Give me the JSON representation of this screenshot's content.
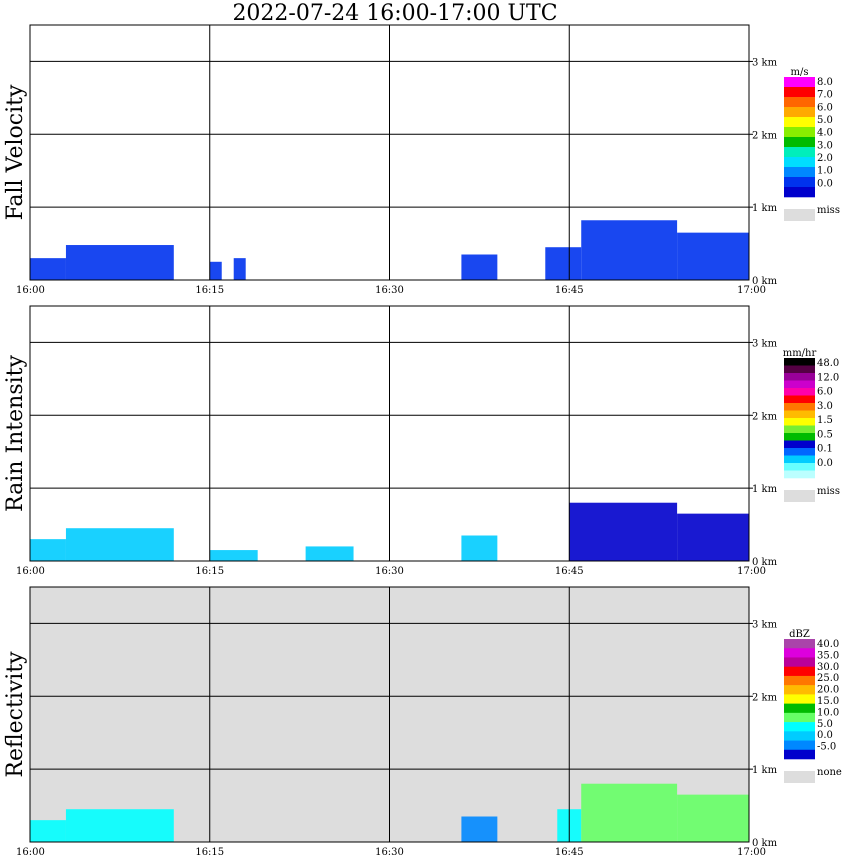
{
  "title": "2022-07-24   16:00-17:00 UTC",
  "chart_data": [
    {
      "type": "heatmap",
      "ylabel": "Fall Velocity",
      "x_ticks": [
        "16:00",
        "16:15",
        "16:30",
        "16:45",
        "17:00"
      ],
      "y_ticks": [
        "1 km",
        "2 km",
        "3 km"
      ],
      "y_range_km": [
        0,
        3.5
      ],
      "legend_units": "m/s",
      "legend_labels": [
        "8.0",
        "7.0",
        "6.0",
        "5.0",
        "4.0",
        "3.0",
        "2.0",
        "1.0",
        "0.0"
      ],
      "legend_colors": [
        "#ff00ff",
        "#ff0000",
        "#ff6600",
        "#ffaa00",
        "#ffff00",
        "#88ee00",
        "#00bb00",
        "#00eebb",
        "#00ddff",
        "#0088ff",
        "#0033ee",
        "#0000cc"
      ],
      "missing_label": "miss",
      "missing_color": "#dddddd",
      "background": "#ffffff",
      "echo_regions": [
        {
          "start": "16:00",
          "end": "16:03",
          "top_km": 0.3,
          "value": 1.0
        },
        {
          "start": "16:03",
          "end": "16:12",
          "top_km": 0.48,
          "value": 1.0
        },
        {
          "start": "16:15",
          "end": "16:16",
          "top_km": 0.25,
          "value": 1.0
        },
        {
          "start": "16:17",
          "end": "16:18",
          "top_km": 0.3,
          "value": 1.0
        },
        {
          "start": "16:36",
          "end": "16:39",
          "top_km": 0.35,
          "value": 1.0
        },
        {
          "start": "16:43",
          "end": "16:46",
          "top_km": 0.45,
          "value": 1.0
        },
        {
          "start": "16:46",
          "end": "16:54",
          "top_km": 0.82,
          "value": 1.0
        },
        {
          "start": "16:54",
          "end": "17:00",
          "top_km": 0.65,
          "value": 1.0
        }
      ]
    },
    {
      "type": "heatmap",
      "ylabel": "Rain Intensity",
      "x_ticks": [
        "16:00",
        "16:15",
        "16:30",
        "16:45",
        "17:00"
      ],
      "y_ticks": [
        "1 km",
        "2 km",
        "3 km"
      ],
      "y_range_km": [
        0,
        3.5
      ],
      "legend_units": "mm/hr",
      "legend_labels": [
        "48.0",
        "12.0",
        "6.0",
        "3.0",
        "1.5",
        "0.5",
        "0.1",
        "0.0"
      ],
      "legend_colors": [
        "#000000",
        "#550044",
        "#990099",
        "#cc00cc",
        "#ff00aa",
        "#ff0000",
        "#ff7700",
        "#ffbb00",
        "#ffff00",
        "#77ee33",
        "#00bb00",
        "#0000cc",
        "#0066ff",
        "#00ccff",
        "#66ffff",
        "#bbffff"
      ],
      "missing_label": "miss",
      "missing_color": "#dddddd",
      "background": "#ffffff",
      "echo_regions": [
        {
          "start": "16:00",
          "end": "16:03",
          "top_km": 0.3,
          "value": 0.1
        },
        {
          "start": "16:03",
          "end": "16:12",
          "top_km": 0.45,
          "value": 0.1
        },
        {
          "start": "16:15",
          "end": "16:19",
          "top_km": 0.15,
          "value": 0.1
        },
        {
          "start": "16:23",
          "end": "16:27",
          "top_km": 0.2,
          "value": 0.1
        },
        {
          "start": "16:36",
          "end": "16:39",
          "top_km": 0.35,
          "value": 0.1
        },
        {
          "start": "16:45",
          "end": "16:54",
          "top_km": 0.8,
          "value": 0.5
        },
        {
          "start": "16:54",
          "end": "17:00",
          "top_km": 0.65,
          "value": 0.5
        }
      ]
    },
    {
      "type": "heatmap",
      "ylabel": "Reflectivity",
      "x_ticks": [
        "16:00",
        "16:15",
        "16:30",
        "16:45",
        "17:00"
      ],
      "y_ticks": [
        "1 km",
        "2 km",
        "3 km"
      ],
      "y_range_km": [
        0,
        3.5
      ],
      "legend_units": "dBZ",
      "legend_labels": [
        "40.0",
        "35.0",
        "30.0",
        "25.0",
        "20.0",
        "15.0",
        "10.0",
        "5.0",
        "0.0",
        "-5.0"
      ],
      "legend_colors": [
        "#aa44aa",
        "#dd00dd",
        "#bb0099",
        "#ff0000",
        "#ff7700",
        "#ffbb00",
        "#ffff00",
        "#00bb00",
        "#66ff66",
        "#00ffff",
        "#00ccff",
        "#0088ff",
        "#0000cc"
      ],
      "missing_label": "none",
      "missing_color": "#dddddd",
      "background": "#dddddd",
      "echo_regions": [
        {
          "start": "16:00",
          "end": "16:03",
          "top_km": 0.3,
          "value": 5.0
        },
        {
          "start": "16:03",
          "end": "16:12",
          "top_km": 0.45,
          "value": 5.0
        },
        {
          "start": "16:36",
          "end": "16:39",
          "top_km": 0.35,
          "value": 0.0
        },
        {
          "start": "16:44",
          "end": "16:46",
          "top_km": 0.45,
          "value": 5.0
        },
        {
          "start": "16:46",
          "end": "16:54",
          "top_km": 0.8,
          "value": 10.0
        },
        {
          "start": "16:54",
          "end": "17:00",
          "top_km": 0.65,
          "value": 10.0
        }
      ]
    }
  ]
}
